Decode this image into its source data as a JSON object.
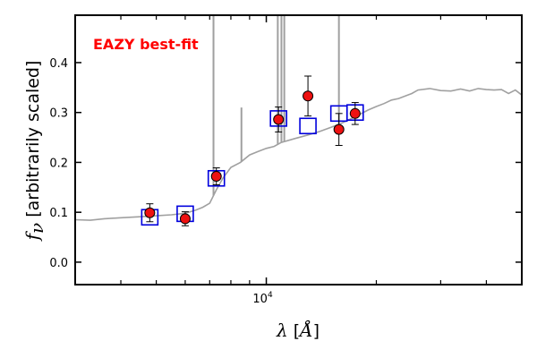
{
  "chart_data": {
    "type": "scatter",
    "annotation": "EAZY best-fit",
    "annotation_color": "#ff0000",
    "xlabel": "λ [Å]",
    "ylabel": "f_ν [arbitrarily scaled]",
    "x_scale": "log",
    "xlim": [
      3000,
      50000
    ],
    "ylim": [
      -0.045,
      0.495
    ],
    "x_ticks": [
      {
        "value": 10000,
        "label": "10^4"
      }
    ],
    "y_ticks": [
      {
        "value": 0.0,
        "label": "0.0"
      },
      {
        "value": 0.1,
        "label": "0.1"
      },
      {
        "value": 0.2,
        "label": "0.2"
      },
      {
        "value": 0.3,
        "label": "0.3"
      },
      {
        "value": 0.4,
        "label": "0.4"
      }
    ],
    "grid": false,
    "colors": {
      "template": "#a0a0a0",
      "model_box": "#0000dd",
      "point_fill": "#ee1111",
      "point_edge": "#000000"
    },
    "template_spectrum": {
      "x": [
        3000,
        3300,
        3600,
        4000,
        4500,
        5000,
        5500,
        6000,
        6400,
        6700,
        7000,
        7300,
        7600,
        8000,
        8500,
        9000,
        9500,
        10000,
        10500,
        11000,
        12000,
        13000,
        14000,
        15000,
        16000,
        17000,
        18000,
        19000,
        20000,
        21000,
        22000,
        23000,
        24000,
        25000,
        26000,
        28000,
        30000,
        32000,
        34000,
        36000,
        38000,
        40000,
        42000,
        44000,
        46000,
        48000,
        50000
      ],
      "y": [
        0.085,
        0.084,
        0.087,
        0.089,
        0.091,
        0.093,
        0.095,
        0.098,
        0.104,
        0.11,
        0.118,
        0.145,
        0.168,
        0.19,
        0.2,
        0.215,
        0.222,
        0.228,
        0.232,
        0.24,
        0.248,
        0.255,
        0.262,
        0.27,
        0.278,
        0.287,
        0.296,
        0.305,
        0.312,
        0.318,
        0.325,
        0.328,
        0.333,
        0.338,
        0.345,
        0.348,
        0.344,
        0.343,
        0.347,
        0.343,
        0.348,
        0.346,
        0.345,
        0.346,
        0.338,
        0.345,
        0.335
      ]
    },
    "emission_lines": [
      {
        "x": 7170,
        "y": 0.495
      },
      {
        "x": 8550,
        "y": 0.31
      },
      {
        "x": 10750,
        "y": 0.495
      },
      {
        "x": 11000,
        "y": 0.495
      },
      {
        "x": 11200,
        "y": 0.495
      },
      {
        "x": 15800,
        "y": 0.495
      }
    ],
    "model_fluxes": {
      "x": [
        4800,
        6000,
        7300,
        10800,
        13000,
        15800,
        17500
      ],
      "y": [
        0.09,
        0.097,
        0.168,
        0.288,
        0.273,
        0.298,
        0.3
      ]
    },
    "observed_fluxes": {
      "x": [
        4800,
        6000,
        7300,
        10800,
        13000,
        15800,
        17500
      ],
      "y": [
        0.099,
        0.087,
        0.172,
        0.286,
        0.333,
        0.266,
        0.298
      ],
      "yerr": [
        0.018,
        0.014,
        0.017,
        0.025,
        0.04,
        0.032,
        0.022
      ]
    }
  }
}
